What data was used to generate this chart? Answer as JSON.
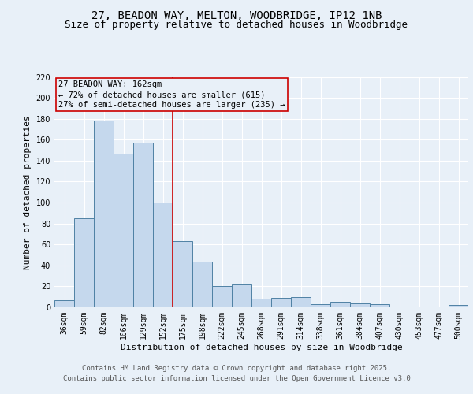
{
  "title_line1": "27, BEADON WAY, MELTON, WOODBRIDGE, IP12 1NB",
  "title_line2": "Size of property relative to detached houses in Woodbridge",
  "xlabel": "Distribution of detached houses by size in Woodbridge",
  "ylabel": "Number of detached properties",
  "categories": [
    "36sqm",
    "59sqm",
    "82sqm",
    "106sqm",
    "129sqm",
    "152sqm",
    "175sqm",
    "198sqm",
    "222sqm",
    "245sqm",
    "268sqm",
    "291sqm",
    "314sqm",
    "338sqm",
    "361sqm",
    "384sqm",
    "407sqm",
    "430sqm",
    "453sqm",
    "477sqm",
    "500sqm"
  ],
  "values": [
    7,
    85,
    178,
    147,
    157,
    100,
    63,
    44,
    20,
    22,
    8,
    9,
    10,
    3,
    5,
    4,
    3,
    0,
    0,
    0,
    2
  ],
  "bar_color": "#c5d8ed",
  "bar_edge_color": "#4f81a4",
  "background_color": "#e8f0f8",
  "grid_color": "#ffffff",
  "annotation_line1": "27 BEADON WAY: 162sqm",
  "annotation_line2": "← 72% of detached houses are smaller (615)",
  "annotation_line3": "27% of semi-detached houses are larger (235) →",
  "annotation_box_color": "#cc0000",
  "property_line_x": 5.5,
  "ylim": [
    0,
    220
  ],
  "yticks": [
    0,
    20,
    40,
    60,
    80,
    100,
    120,
    140,
    160,
    180,
    200,
    220
  ],
  "footer_line1": "Contains HM Land Registry data © Crown copyright and database right 2025.",
  "footer_line2": "Contains public sector information licensed under the Open Government Licence v3.0",
  "title_fontsize": 10,
  "subtitle_fontsize": 9,
  "axis_label_fontsize": 8,
  "tick_fontsize": 7,
  "annotation_fontsize": 7.5,
  "footer_fontsize": 6.5
}
